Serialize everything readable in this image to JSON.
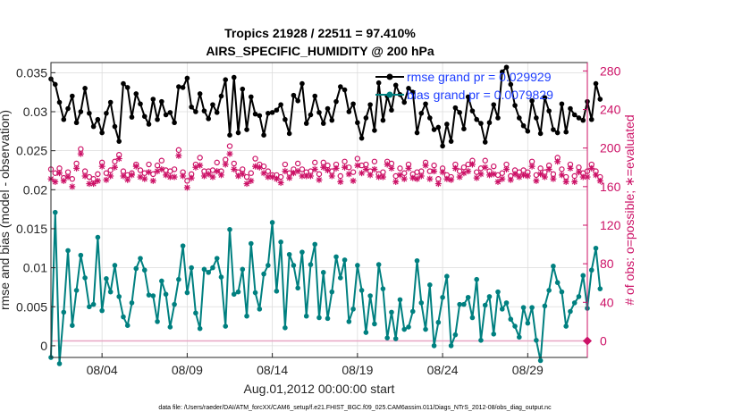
{
  "chart_data": {
    "type": "line",
    "title": "Tropics 21928 / 22511 = 97.410%",
    "subtitle": "AIRS_SPECIFIC_HUMIDITY @ 200 hPa",
    "xlabel": "Aug.01,2012 00:00:00 start",
    "ylabel_left": "rmse and bias (model - observation)",
    "ylabel_right": "# of obs: o=possible; ∗=evaluated",
    "footnote": "data file: /Users/raeder/DAI/ATM_forcXX/CAM6_setup/f.e21.FHIST_BGC.f09_025.CAM6assim.011/Diags_NTrS_2012-08/obs_diag_output.nc",
    "xlim": [
      1,
      32.5
    ],
    "ylim_left": [
      -0.0015,
      0.0363
    ],
    "ylim_right": [
      -17.2,
      288.7
    ],
    "x_ticks": [
      4,
      9,
      14,
      19,
      24,
      29
    ],
    "x_tick_labels": [
      "08/04",
      "08/09",
      "08/14",
      "08/19",
      "08/24",
      "08/29"
    ],
    "y_left_ticks": [
      0,
      0.005,
      0.01,
      0.015,
      0.02,
      0.025,
      0.03,
      0.035
    ],
    "y_left_tick_labels": [
      "0",
      "0.005",
      "0.01",
      "0.015",
      "0.02",
      "0.025",
      "0.03",
      "0.035"
    ],
    "y_right_ticks": [
      0,
      40,
      80,
      120,
      160,
      200,
      240,
      280
    ],
    "y_right_tick_labels": [
      "0",
      "40",
      "80",
      "120",
      "160",
      "200",
      "240",
      "280"
    ],
    "grid": true,
    "legend_position": "top-right",
    "series": [
      {
        "name": "rmse grand pr = 0.029929",
        "axis": "left",
        "color": "#000000",
        "marker": "circle",
        "x_start": 1,
        "x_step": 0.25,
        "values": [
          0.0342,
          0.0335,
          0.0312,
          0.029,
          0.0304,
          0.032,
          0.0286,
          0.03,
          0.033,
          0.0298,
          0.0281,
          0.029,
          0.0273,
          0.0298,
          0.0312,
          0.0281,
          0.0262,
          0.0336,
          0.0331,
          0.0293,
          0.0323,
          0.031,
          0.0294,
          0.0284,
          0.0316,
          0.029,
          0.0313,
          0.0296,
          0.0299,
          0.0286,
          0.0332,
          0.0331,
          0.0343,
          0.0306,
          0.03,
          0.0323,
          0.0301,
          0.0291,
          0.0309,
          0.0299,
          0.032,
          0.0341,
          0.027,
          0.0344,
          0.0273,
          0.0329,
          0.0277,
          0.0319,
          0.0297,
          0.0295,
          0.027,
          0.0298,
          0.0299,
          0.0302,
          0.0309,
          0.029,
          0.0272,
          0.0321,
          0.0314,
          0.0336,
          0.0285,
          0.0296,
          0.032,
          0.0299,
          0.0285,
          0.0304,
          0.0289,
          0.0313,
          0.0332,
          0.0328,
          0.03,
          0.031,
          0.0286,
          0.0266,
          0.0292,
          0.0309,
          0.0276,
          0.0337,
          0.0289,
          0.032,
          0.0302,
          0.0334,
          0.0322,
          0.0312,
          0.033,
          0.0325,
          0.0273,
          0.0298,
          0.031,
          0.0292,
          0.0277,
          0.028,
          0.0256,
          0.0284,
          0.0262,
          0.0305,
          0.0299,
          0.0278,
          0.0319,
          0.0301,
          0.029,
          0.0285,
          0.0261,
          0.0286,
          0.0309,
          0.0292,
          0.0351,
          0.0357,
          0.0335,
          0.0308,
          0.0292,
          0.0282,
          0.0275,
          0.0314,
          0.0292,
          0.0272,
          0.0318,
          0.0301,
          0.0277,
          0.0273,
          0.031,
          0.0274,
          0.0304,
          0.0296,
          0.0292,
          0.0289,
          0.0313,
          0.029,
          0.0336,
          0.0316
        ]
      },
      {
        "name": "bias grand pr = 0.0079829",
        "axis": "left",
        "color": "#008080",
        "marker": "circle",
        "x_start": 1,
        "x_step": 0.25,
        "values": [
          -0.0015,
          0.0171,
          -0.0023,
          0.0043,
          0.0122,
          0.0026,
          0.0071,
          0.0116,
          0.0087,
          0.005,
          0.0053,
          0.0139,
          0.0045,
          0.0086,
          0.0069,
          0.0103,
          0.0063,
          0.0037,
          0.0026,
          0.0055,
          0.0099,
          0.0112,
          0.0097,
          0.0065,
          0.0064,
          0.0031,
          0.0083,
          0.0066,
          0.0024,
          0.0053,
          0.0085,
          0.0128,
          0.0068,
          0.01,
          0.0042,
          0.0022,
          0.0098,
          0.0094,
          0.01,
          0.0112,
          0.0088,
          0.0025,
          0.0149,
          0.0066,
          0.0069,
          0.0098,
          0.0038,
          0.0131,
          0.0068,
          0.0047,
          0.0092,
          0.0103,
          0.0158,
          0.007,
          0.0133,
          0.0023,
          0.0117,
          0.0103,
          0.0074,
          0.012,
          0.0038,
          0.0104,
          0.013,
          0.0036,
          0.0094,
          0.0035,
          0.0069,
          0.0114,
          0.0087,
          0.011,
          0.0031,
          0.0047,
          0.0103,
          0.0071,
          0.0017,
          0.0064,
          0.0028,
          0.0104,
          0.0073,
          0.001,
          0.0043,
          0.0009,
          0.0059,
          0.0021,
          0.0024,
          0.0044,
          0.0109,
          0.0055,
          0.0021,
          0.0078,
          0.0,
          0.003,
          0.0062,
          0.0089,
          0.0,
          0.0014,
          0.0053,
          0.0053,
          0.0062,
          0.0036,
          0.0085,
          0.0007,
          0.0052,
          0.0063,
          0.0015,
          0.0069,
          0.0047,
          0.0055,
          0.0034,
          0.0025,
          0.0011,
          0.0049,
          0.0029,
          0.0049,
          0.0007,
          -0.0019,
          0.0051,
          0.0071,
          0.0102,
          0.0081,
          0.0069,
          0.0025,
          0.0044,
          0.0055,
          0.0063,
          0.009,
          0.0048,
          0.0097,
          0.0125,
          0.0073
        ]
      },
      {
        "name": "possible",
        "axis": "right",
        "color": "#cc1166",
        "marker": "o",
        "x_start": 1,
        "x_step": 0.25,
        "values": [
          178,
          174,
          179,
          169,
          175,
          168,
          184,
          199,
          176,
          170,
          168,
          173,
          185,
          174,
          177,
          186,
          193,
          176,
          172,
          174,
          183,
          177,
          174,
          183,
          173,
          182,
          187,
          177,
          176,
          178,
          198,
          175,
          166,
          173,
          183,
          190,
          176,
          176,
          177,
          185,
          176,
          188,
          202,
          184,
          175,
          178,
          170,
          174,
          189,
          183,
          181,
          176,
          172,
          172,
          170,
          183,
          174,
          178,
          184,
          178,
          175,
          176,
          185,
          173,
          185,
          182,
          176,
          183,
          171,
          186,
          180,
          175,
          189,
          182,
          183,
          176,
          186,
          173,
          175,
          186,
          184,
          171,
          179,
          174,
          183,
          173,
          175,
          176,
          185,
          176,
          182,
          168,
          179,
          172,
          170,
          183,
          176,
          180,
          183,
          187,
          175,
          179,
          187,
          176,
          181,
          172,
          174,
          183,
          171,
          177,
          175,
          177,
          175,
          186,
          172,
          179,
          175,
          182,
          173,
          190,
          178,
          170,
          183,
          171,
          180,
          174,
          176,
          183,
          176,
          170
        ]
      },
      {
        "name": "evaluated",
        "axis": "right",
        "color": "#cc1166",
        "marker": "*",
        "x_start": 1,
        "x_step": 0.25,
        "values": [
          168,
          165,
          174,
          166,
          170,
          160,
          179,
          194,
          171,
          163,
          163,
          166,
          181,
          167,
          171,
          180,
          189,
          171,
          167,
          172,
          181,
          170,
          168,
          175,
          166,
          176,
          178,
          172,
          170,
          170,
          192,
          171,
          159,
          169,
          180,
          182,
          171,
          173,
          170,
          176,
          172,
          183,
          194,
          178,
          171,
          173,
          163,
          166,
          181,
          180,
          174,
          170,
          170,
          168,
          164,
          176,
          169,
          174,
          176,
          171,
          171,
          171,
          178,
          167,
          180,
          177,
          171,
          179,
          165,
          180,
          173,
          166,
          182,
          174,
          178,
          172,
          178,
          170,
          170,
          183,
          179,
          165,
          172,
          168,
          179,
          169,
          168,
          171,
          182,
          168,
          176,
          163,
          175,
          168,
          167,
          179,
          170,
          174,
          176,
          183,
          169,
          173,
          180,
          172,
          173,
          165,
          168,
          178,
          167,
          173,
          170,
          172,
          171,
          181,
          166,
          173,
          170,
          178,
          168,
          186,
          172,
          165,
          179,
          165,
          175,
          170,
          170,
          179,
          172,
          166
        ]
      }
    ]
  }
}
